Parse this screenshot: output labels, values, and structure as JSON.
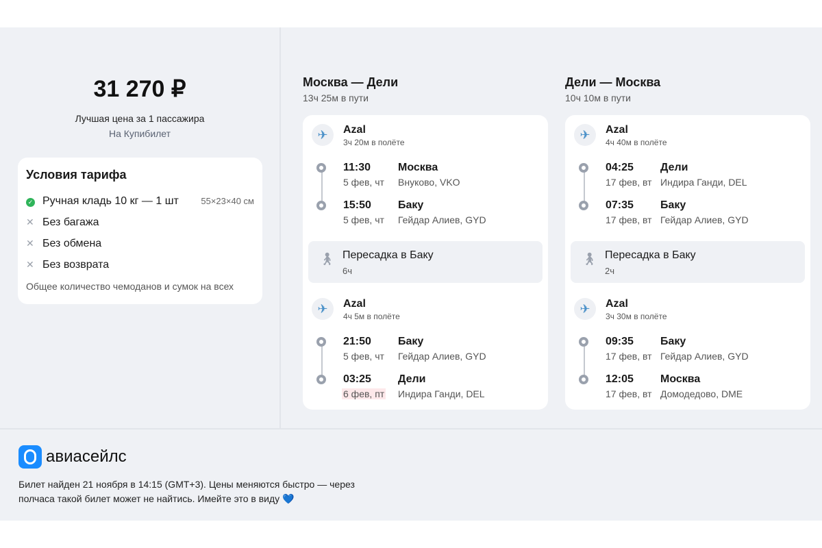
{
  "price": {
    "amount": "31 270 ₽",
    "subtitle": "Лучшая цена за 1 пассажира",
    "agent": "На Купибилет"
  },
  "tariff": {
    "title": "Условия тарифа",
    "items": [
      {
        "icon": "check-icon",
        "text": "Ручная кладь 10 кг — 1 шт",
        "extra": "55×23×40 см"
      },
      {
        "icon": "cross-icon",
        "text": "Без багажа"
      },
      {
        "icon": "cross-icon",
        "text": "Без обмена"
      },
      {
        "icon": "cross-icon",
        "text": "Без возврата"
      }
    ],
    "note": "Общее количество чемоданов и сумок на всех"
  },
  "legs": [
    {
      "title": "Москва — Дели",
      "duration": "13ч 25м в пути",
      "segments": [
        {
          "airline": "Azal",
          "flight_time": "3ч 20м в полёте",
          "stops": [
            {
              "time": "11:30",
              "date": "5 фев, чт",
              "city": "Москва",
              "airport": "Внуково, VKO"
            },
            {
              "time": "15:50",
              "date": "5 фев, чт",
              "city": "Баку",
              "airport": "Гейдар Алиев, GYD"
            }
          ]
        },
        {
          "airline": "Azal",
          "flight_time": "4ч 5м в полёте",
          "stops": [
            {
              "time": "21:50",
              "date": "5 фев, чт",
              "city": "Баку",
              "airport": "Гейдар Алиев, GYD"
            },
            {
              "time": "03:25",
              "date": "6 фев, пт",
              "city": "Дели",
              "airport": "Индира Ганди, DEL",
              "highlight": true
            }
          ]
        }
      ],
      "transfer": {
        "title": "Пересадка в Баку",
        "duration": "6ч"
      }
    },
    {
      "title": "Дели — Москва",
      "duration": "10ч 10м в пути",
      "segments": [
        {
          "airline": "Azal",
          "flight_time": "4ч 40м в полёте",
          "stops": [
            {
              "time": "04:25",
              "date": "17 фев, вт",
              "city": "Дели",
              "airport": "Индира Ганди, DEL"
            },
            {
              "time": "07:35",
              "date": "17 фев, вт",
              "city": "Баку",
              "airport": "Гейдар Алиев, GYD"
            }
          ]
        },
        {
          "airline": "Azal",
          "flight_time": "3ч 30м в полёте",
          "stops": [
            {
              "time": "09:35",
              "date": "17 фев, вт",
              "city": "Баку",
              "airport": "Гейдар Алиев, GYD"
            },
            {
              "time": "12:05",
              "date": "17 фев, вт",
              "city": "Москва",
              "airport": "Домодедово, DME"
            }
          ]
        }
      ],
      "transfer": {
        "title": "Пересадка в Баку",
        "duration": "2ч"
      }
    }
  ],
  "footer": {
    "brand": "авиасейлс",
    "note": "Билет найден 21 ноября в 14:15 (GMT+3). Цены меняются быстро — через полчаса такой билет может не найтись. Имейте это в виду 💙"
  },
  "colors": {
    "background": "#eff1f5",
    "brand": "#1a8cff",
    "check": "#2fb45a",
    "highlight": "#fde8ea"
  }
}
